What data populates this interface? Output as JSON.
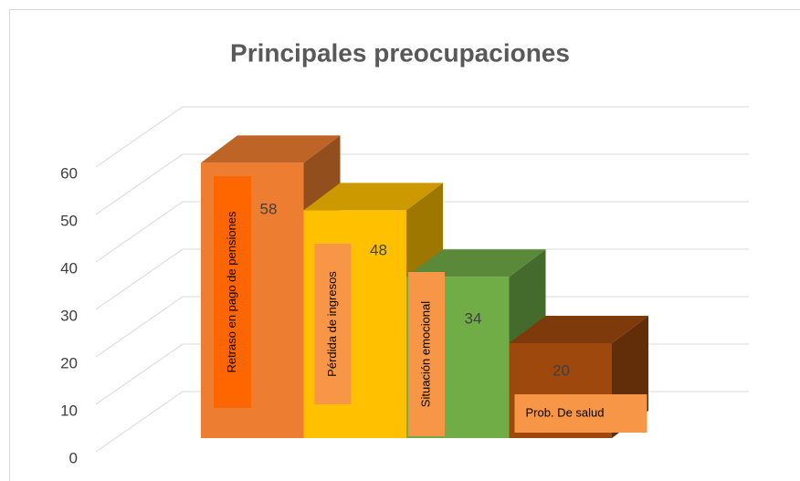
{
  "chart_data": {
    "type": "bar3d",
    "title": "Principales preocupaciones",
    "categories": [
      "Retraso en pago de pensiones",
      "Pérdida de ingresos",
      "Situación emocional",
      "Prob. De salud"
    ],
    "values": [
      58,
      48,
      34,
      20
    ],
    "colors": [
      "#ed7d31",
      "#ffc000",
      "#70ad47",
      "#9e480e"
    ],
    "ylim": [
      0,
      60
    ],
    "yticks": [
      0,
      10,
      20,
      30,
      40,
      50,
      60
    ],
    "grid": true
  }
}
